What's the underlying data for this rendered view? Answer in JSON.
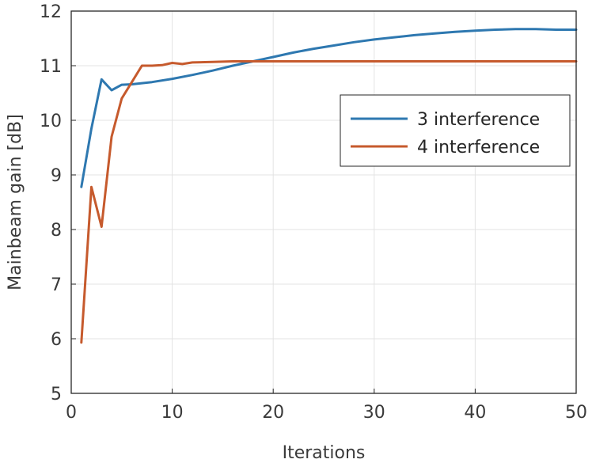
{
  "chart_data": {
    "type": "line",
    "xlabel": "Iterations",
    "ylabel": "Mainbeam gain [dB]",
    "xlim": [
      0,
      50
    ],
    "ylim": [
      5,
      12
    ],
    "xticks": [
      0,
      10,
      20,
      30,
      40,
      50
    ],
    "yticks": [
      5,
      6,
      7,
      8,
      9,
      10,
      11,
      12
    ],
    "grid": true,
    "legend_position": "right",
    "series": [
      {
        "name": "3 interference",
        "color": "#2e78b0",
        "x": [
          1,
          2,
          3,
          4,
          5,
          6,
          7,
          8,
          10,
          12,
          14,
          16,
          18,
          20,
          22,
          24,
          26,
          28,
          30,
          32,
          34,
          36,
          38,
          40,
          42,
          44,
          46,
          48,
          50
        ],
        "y": [
          8.78,
          9.85,
          10.75,
          10.55,
          10.65,
          10.66,
          10.68,
          10.7,
          10.76,
          10.83,
          10.91,
          11.0,
          11.08,
          11.16,
          11.24,
          11.31,
          11.37,
          11.43,
          11.48,
          11.52,
          11.56,
          11.59,
          11.62,
          11.64,
          11.66,
          11.67,
          11.67,
          11.66,
          11.66
        ]
      },
      {
        "name": "4 interference",
        "color": "#c65a2d",
        "x": [
          1,
          2,
          3,
          4,
          5,
          6,
          7,
          8,
          9,
          10,
          11,
          12,
          14,
          16,
          18,
          20,
          25,
          30,
          35,
          40,
          45,
          50
        ],
        "y": [
          5.93,
          8.78,
          8.05,
          9.7,
          10.4,
          10.7,
          11.0,
          11.0,
          11.01,
          11.05,
          11.03,
          11.06,
          11.07,
          11.08,
          11.08,
          11.08,
          11.08,
          11.08,
          11.08,
          11.08,
          11.08,
          11.08
        ]
      }
    ]
  }
}
